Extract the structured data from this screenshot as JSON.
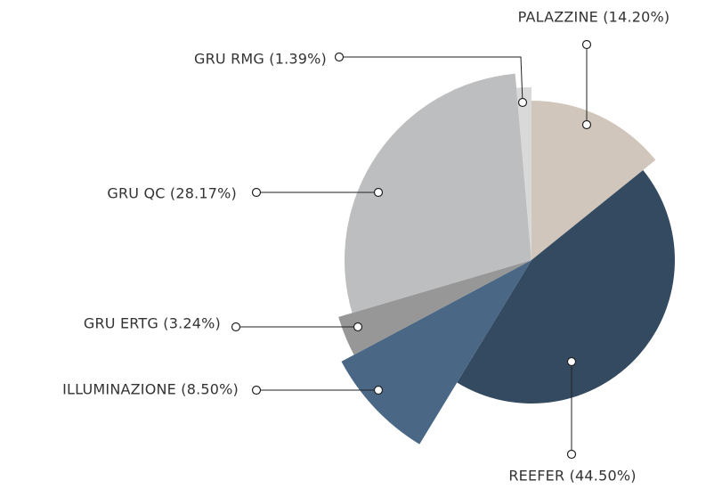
{
  "chart_data": {
    "type": "pie",
    "categories": [
      "PALAZZINE",
      "REEFER",
      "ILLUMINAZIONE",
      "GRU ERTG",
      "GRU QC",
      "GRU RMG"
    ],
    "labels": [
      "PALAZZINE (14.20%)",
      "REEFER (44.50%)",
      "ILLUMINAZIONE (8.50%)",
      "GRU ERTG (3.24%)",
      "GRU QC (28.17%)",
      "GRU RMG (1.39%)"
    ],
    "values": [
      14.2,
      44.5,
      8.5,
      3.24,
      28.17,
      1.39
    ],
    "colors": [
      "#d1c6bb",
      "#344a60",
      "#4a6885",
      "#979797",
      "#bdbec0",
      "#d9d9d9"
    ]
  }
}
